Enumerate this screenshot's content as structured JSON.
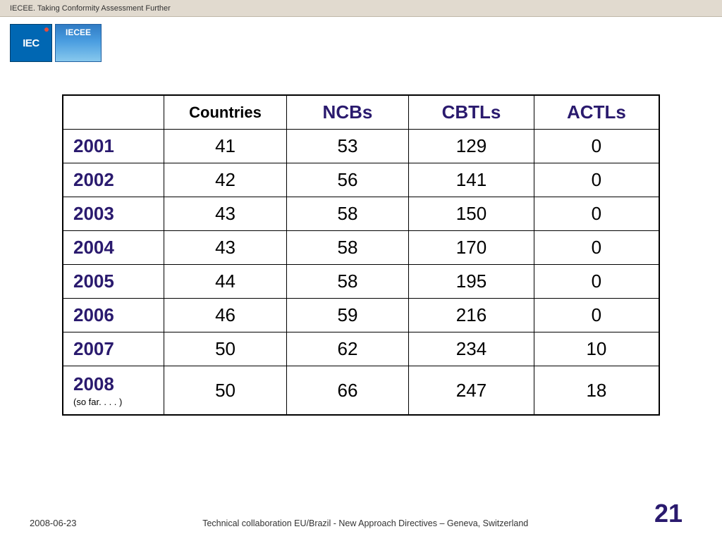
{
  "header": {
    "tagline": "IECEE. Taking Conformity Assessment Further",
    "iec_label": "IEC",
    "iecee_label": "IECEE"
  },
  "table": {
    "columns": [
      "",
      "Countries",
      "NCBs",
      "CBTLs",
      "ACTLs"
    ],
    "rows": [
      {
        "year": "2001",
        "countries": "41",
        "ncbs": "53",
        "cbtls": "129",
        "actls": "0"
      },
      {
        "year": "2002",
        "countries": "42",
        "ncbs": "56",
        "cbtls": "141",
        "actls": "0"
      },
      {
        "year": "2003",
        "countries": "43",
        "ncbs": "58",
        "cbtls": "150",
        "actls": "0"
      },
      {
        "year": "2004",
        "countries": "43",
        "ncbs": "58",
        "cbtls": "170",
        "actls": "0"
      },
      {
        "year": "2005",
        "countries": "44",
        "ncbs": "58",
        "cbtls": "195",
        "actls": "0"
      },
      {
        "year": "2006",
        "countries": "46",
        "ncbs": "59",
        "cbtls": "216",
        "actls": "0"
      },
      {
        "year": "2007",
        "countries": "50",
        "ncbs": "62",
        "cbtls": "234",
        "actls": "10"
      },
      {
        "year": "2008",
        "year_sub": "(so far. . . . )",
        "countries": "50",
        "ncbs": "66",
        "cbtls": "247",
        "actls": "18"
      }
    ]
  },
  "footer": {
    "date": "2008-06-23",
    "caption": "Technical collaboration EU/Brazil - New Approach Directives – Geneva, Switzerland",
    "page": "21"
  },
  "styling": {
    "header_color": "#2a1a6e",
    "border_color": "#000000",
    "bg_color": "#ffffff",
    "header_bar_bg": "#e1dacf",
    "year_fontsize": 26,
    "header_fontsize": 26,
    "countries_header_fontsize": 22,
    "page_num_fontsize": 36
  }
}
